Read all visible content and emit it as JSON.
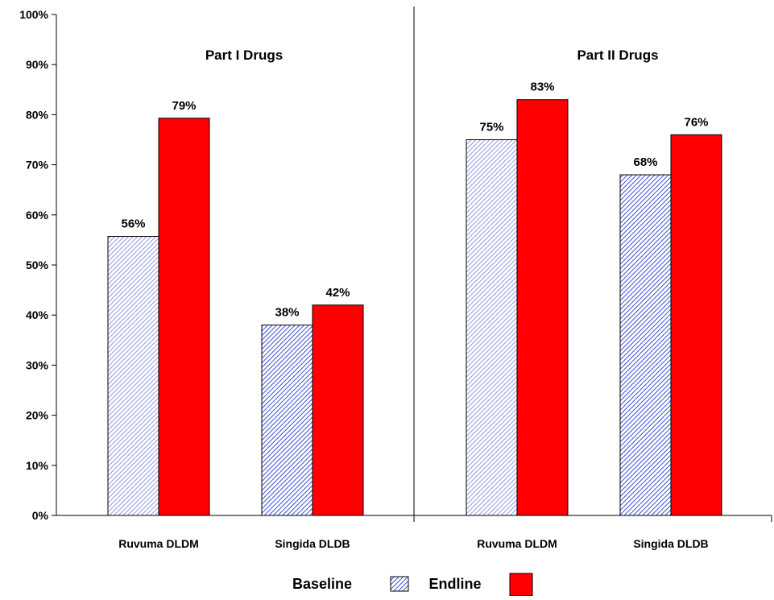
{
  "chart_data": {
    "type": "bar",
    "ylim": [
      0,
      100
    ],
    "y_tick_step": 10,
    "y_unit": "%",
    "grid": false,
    "legend_position": "bottom",
    "series": [
      {
        "name": "Baseline",
        "color": "#3a4fd6",
        "pattern": "diagonal-hatch"
      },
      {
        "name": "Endline",
        "color": "#ff0000",
        "pattern": "solid"
      }
    ],
    "groups": [
      {
        "title": "Part I Drugs",
        "categories": [
          "Ruvuma DLDM",
          "Singida DLDB"
        ],
        "values": {
          "Baseline": [
            56,
            38
          ],
          "Endline": [
            79,
            42
          ]
        },
        "plotted": {
          "Baseline": [
            55.7,
            38
          ],
          "Endline": [
            79.3,
            42
          ]
        }
      },
      {
        "title": "Part II Drugs",
        "categories": [
          "Ruvuma DLDM",
          "Singida DLDB"
        ],
        "values": {
          "Baseline": [
            75,
            68
          ],
          "Endline": [
            83,
            76
          ]
        },
        "plotted": {
          "Baseline": [
            75,
            68
          ],
          "Endline": [
            83,
            76
          ]
        }
      }
    ]
  }
}
